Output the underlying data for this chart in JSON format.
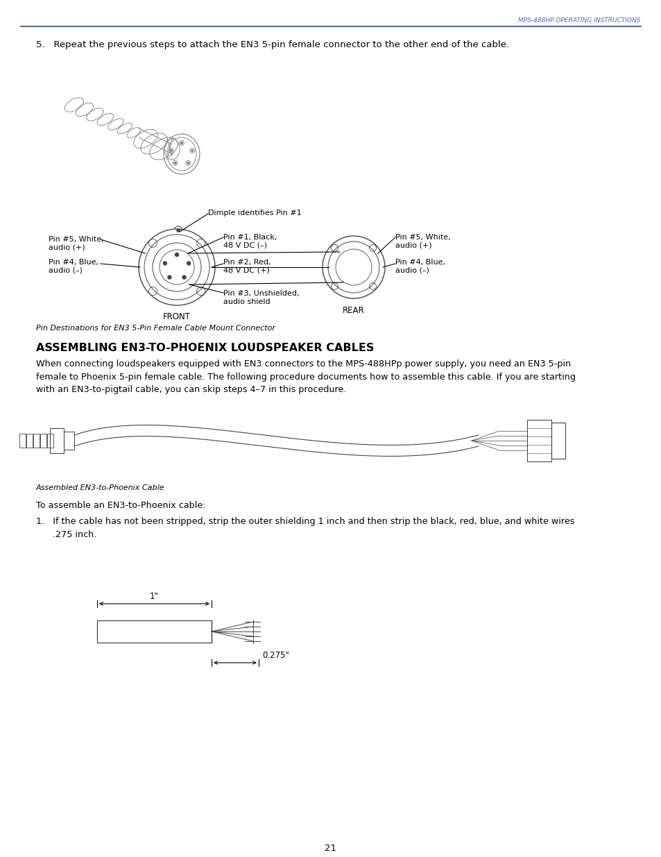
{
  "header_text": "MPS-488HP OPERATING INSTRUCTIONS",
  "header_color": "#4472C4",
  "line_color": "#2E4A8C",
  "bg_color": "#ffffff",
  "step5_text": "5.   Repeat the previous steps to attach the EN3 5-pin female connector to the other end of the cable.",
  "dimple_label": "Dimple identifies Pin #1",
  "front_label": "FRONT",
  "rear_label": "REAR",
  "pin5_white_left": "Pin #5, White,\naudio (+)",
  "pin4_blue_left": "Pin #4, Blue,\naudio (–)",
  "pin1_black": "Pin #1, Black,\n48 V DC (–)",
  "pin2_red": "Pin #2, Red,\n48 V DC (+)",
  "pin3_unshielded": "Pin #3, Unshielded,\naudio shield",
  "pin5_white_right": "Pin #5, White,\naudio (+)",
  "pin4_blue_right": "Pin #4, Blue,\naudio (–)",
  "caption1": "Pin Destinations for EN3 5-Pin Female Cable Mount Connector",
  "section_title": "ASSEMBLING EN3-TO-PHOENIX LOUDSPEAKER CABLES",
  "body_text": "When connecting loudspeakers equipped with EN3 connectors to the MPS-488HPp power supply, you need an EN3 5-pin\nfemale to Phoenix 5-pin female cable. The following procedure documents how to assemble this cable. If you are starting\nwith an EN3-to-pigtail cable, you can skip steps 4–7 in this procedure.",
  "caption2": "Assembled EN3-to-Phoenix Cable",
  "step1_text": "1.   If the cable has not been stripped, strip the outer shielding 1 inch and then strip the black, red, blue, and white wires\n      .275 inch.",
  "assemble_text": "To assemble an EN3-to-Phoenix cable:",
  "dim1_label": "1\"",
  "dim2_label": "0.275\"",
  "page_number": "21",
  "text_color": "#000000",
  "diagram_color": "#888888",
  "diagram_dark": "#444444"
}
